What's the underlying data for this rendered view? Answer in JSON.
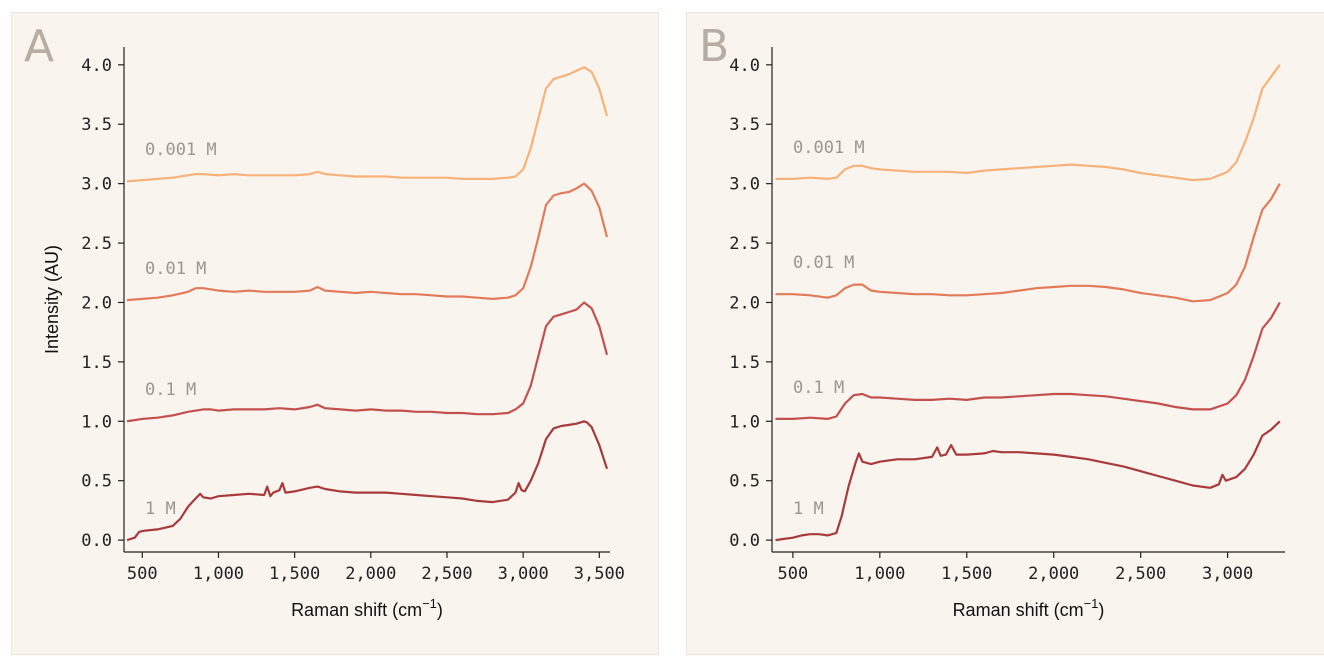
{
  "chart_data": [
    {
      "type": "line",
      "panel_label": "A",
      "xlabel": "Raman shift (cm",
      "xlabel_sup": "−1",
      "xlabel_end": ")",
      "ylabel": "Intensity (AU)",
      "xlim": [
        380,
        3570
      ],
      "ylim": [
        -0.1,
        4.15
      ],
      "xticks": [
        500,
        1000,
        1500,
        2000,
        2500,
        3000,
        3500
      ],
      "xtick_labels": [
        "500",
        "1,000",
        "1,500",
        "2,000",
        "2,500",
        "3,000",
        "3,500"
      ],
      "yticks": [
        0.0,
        0.5,
        1.0,
        1.5,
        2.0,
        2.5,
        3.0,
        3.5,
        4.0
      ],
      "ytick_labels": [
        "0.0",
        "0.5",
        "1.0",
        "1.5",
        "2.0",
        "2.5",
        "3.0",
        "3.5",
        "4.0"
      ],
      "series": [
        {
          "name": "1 M",
          "color": "#a83a3c",
          "x": [
            400,
            450,
            480,
            520,
            600,
            700,
            750,
            800,
            850,
            880,
            900,
            950,
            1000,
            1100,
            1200,
            1300,
            1320,
            1340,
            1360,
            1400,
            1420,
            1440,
            1500,
            1600,
            1650,
            1700,
            1800,
            1900,
            2000,
            2100,
            2200,
            2300,
            2400,
            2500,
            2600,
            2700,
            2800,
            2900,
            2950,
            2970,
            2990,
            3010,
            3050,
            3100,
            3150,
            3200,
            3250,
            3300,
            3350,
            3400,
            3420,
            3450,
            3500,
            3550
          ],
          "y": [
            0.0,
            0.02,
            0.07,
            0.08,
            0.09,
            0.12,
            0.18,
            0.28,
            0.35,
            0.39,
            0.36,
            0.35,
            0.37,
            0.38,
            0.39,
            0.38,
            0.45,
            0.37,
            0.4,
            0.42,
            0.48,
            0.4,
            0.41,
            0.44,
            0.45,
            0.43,
            0.41,
            0.4,
            0.4,
            0.4,
            0.39,
            0.38,
            0.37,
            0.36,
            0.35,
            0.33,
            0.32,
            0.34,
            0.4,
            0.48,
            0.42,
            0.41,
            0.5,
            0.65,
            0.85,
            0.94,
            0.96,
            0.97,
            0.98,
            1.0,
            0.99,
            0.95,
            0.8,
            0.6
          ]
        },
        {
          "name": "0.1 M",
          "color": "#c4504e",
          "x": [
            400,
            500,
            600,
            700,
            800,
            900,
            950,
            1000,
            1100,
            1200,
            1300,
            1400,
            1500,
            1600,
            1650,
            1700,
            1800,
            1900,
            2000,
            2100,
            2200,
            2300,
            2400,
            2500,
            2600,
            2700,
            2800,
            2900,
            2950,
            3000,
            3050,
            3100,
            3150,
            3200,
            3250,
            3300,
            3350,
            3400,
            3450,
            3500,
            3550
          ],
          "y": [
            1.0,
            1.02,
            1.03,
            1.05,
            1.08,
            1.1,
            1.1,
            1.09,
            1.1,
            1.1,
            1.1,
            1.11,
            1.1,
            1.12,
            1.14,
            1.11,
            1.1,
            1.09,
            1.1,
            1.09,
            1.09,
            1.08,
            1.08,
            1.07,
            1.07,
            1.06,
            1.06,
            1.07,
            1.1,
            1.15,
            1.3,
            1.55,
            1.8,
            1.88,
            1.9,
            1.92,
            1.94,
            2.0,
            1.95,
            1.8,
            1.56
          ]
        },
        {
          "name": "0.01 M",
          "color": "#e37b5a",
          "x": [
            400,
            500,
            600,
            700,
            800,
            850,
            900,
            1000,
            1100,
            1200,
            1300,
            1400,
            1500,
            1600,
            1650,
            1700,
            1800,
            1900,
            2000,
            2100,
            2200,
            2300,
            2400,
            2500,
            2600,
            2700,
            2800,
            2900,
            2950,
            3000,
            3050,
            3100,
            3150,
            3200,
            3250,
            3300,
            3350,
            3400,
            3450,
            3500,
            3550
          ],
          "y": [
            2.02,
            2.03,
            2.04,
            2.06,
            2.09,
            2.12,
            2.12,
            2.1,
            2.09,
            2.1,
            2.09,
            2.09,
            2.09,
            2.1,
            2.13,
            2.1,
            2.09,
            2.08,
            2.09,
            2.08,
            2.07,
            2.07,
            2.06,
            2.05,
            2.05,
            2.04,
            2.03,
            2.04,
            2.06,
            2.12,
            2.3,
            2.55,
            2.82,
            2.9,
            2.92,
            2.93,
            2.96,
            3.0,
            2.94,
            2.8,
            2.55
          ]
        },
        {
          "name": "0.001 M",
          "color": "#f7b27a",
          "x": [
            400,
            500,
            600,
            700,
            800,
            850,
            900,
            1000,
            1100,
            1200,
            1300,
            1400,
            1500,
            1600,
            1650,
            1700,
            1800,
            1900,
            2000,
            2100,
            2200,
            2300,
            2400,
            2500,
            2600,
            2700,
            2800,
            2900,
            2950,
            3000,
            3050,
            3100,
            3150,
            3200,
            3250,
            3300,
            3350,
            3400,
            3450,
            3500,
            3550
          ],
          "y": [
            3.02,
            3.03,
            3.04,
            3.05,
            3.07,
            3.08,
            3.08,
            3.07,
            3.08,
            3.07,
            3.07,
            3.07,
            3.07,
            3.08,
            3.1,
            3.08,
            3.07,
            3.06,
            3.06,
            3.06,
            3.05,
            3.05,
            3.05,
            3.05,
            3.04,
            3.04,
            3.04,
            3.05,
            3.06,
            3.12,
            3.3,
            3.55,
            3.8,
            3.88,
            3.9,
            3.92,
            3.95,
            3.98,
            3.94,
            3.8,
            3.57
          ]
        }
      ]
    },
    {
      "type": "line",
      "panel_label": "B",
      "xlabel": "Raman shift (cm",
      "xlabel_sup": "−1",
      "xlabel_end": ")",
      "ylabel": "",
      "xlim": [
        380,
        3330
      ],
      "ylim": [
        -0.1,
        4.15
      ],
      "xticks": [
        500,
        1000,
        1500,
        2000,
        2500,
        3000
      ],
      "xtick_labels": [
        "500",
        "1,000",
        "1,500",
        "2,000",
        "2,500",
        "3,000"
      ],
      "yticks": [
        0.0,
        0.5,
        1.0,
        1.5,
        2.0,
        2.5,
        3.0,
        3.5,
        4.0
      ],
      "ytick_labels": [
        "0.0",
        "0.5",
        "1.0",
        "1.5",
        "2.0",
        "2.5",
        "3.0",
        "3.5",
        "4.0"
      ],
      "series": [
        {
          "name": "1 M",
          "color": "#a83a3c",
          "x": [
            400,
            450,
            500,
            550,
            600,
            650,
            700,
            750,
            780,
            820,
            860,
            880,
            900,
            950,
            1000,
            1100,
            1200,
            1300,
            1330,
            1350,
            1380,
            1410,
            1440,
            1500,
            1600,
            1650,
            1700,
            1800,
            1900,
            2000,
            2100,
            2200,
            2300,
            2400,
            2500,
            2600,
            2700,
            2800,
            2900,
            2950,
            2970,
            2990,
            3050,
            3100,
            3150,
            3200,
            3250,
            3300
          ],
          "y": [
            0.0,
            0.01,
            0.02,
            0.04,
            0.05,
            0.05,
            0.04,
            0.06,
            0.2,
            0.45,
            0.65,
            0.73,
            0.66,
            0.64,
            0.66,
            0.68,
            0.68,
            0.7,
            0.78,
            0.71,
            0.72,
            0.8,
            0.72,
            0.72,
            0.73,
            0.75,
            0.74,
            0.74,
            0.73,
            0.72,
            0.7,
            0.68,
            0.65,
            0.62,
            0.58,
            0.54,
            0.5,
            0.46,
            0.44,
            0.47,
            0.55,
            0.5,
            0.53,
            0.6,
            0.72,
            0.88,
            0.93,
            1.0
          ]
        },
        {
          "name": "0.1 M",
          "color": "#c4504e",
          "x": [
            400,
            500,
            600,
            700,
            750,
            800,
            850,
            900,
            950,
            1000,
            1100,
            1200,
            1300,
            1400,
            1500,
            1600,
            1700,
            1800,
            1900,
            2000,
            2100,
            2200,
            2300,
            2400,
            2500,
            2600,
            2700,
            2800,
            2900,
            3000,
            3050,
            3100,
            3150,
            3200,
            3250,
            3300
          ],
          "y": [
            1.02,
            1.02,
            1.03,
            1.02,
            1.04,
            1.15,
            1.22,
            1.23,
            1.2,
            1.2,
            1.19,
            1.18,
            1.18,
            1.19,
            1.18,
            1.2,
            1.2,
            1.21,
            1.22,
            1.23,
            1.23,
            1.22,
            1.21,
            1.19,
            1.17,
            1.15,
            1.12,
            1.1,
            1.1,
            1.15,
            1.22,
            1.35,
            1.55,
            1.78,
            1.87,
            2.0
          ]
        },
        {
          "name": "0.01 M",
          "color": "#e37b5a",
          "x": [
            400,
            500,
            600,
            700,
            750,
            800,
            850,
            900,
            950,
            1000,
            1100,
            1200,
            1300,
            1400,
            1500,
            1600,
            1700,
            1800,
            1900,
            2000,
            2100,
            2200,
            2300,
            2400,
            2500,
            2600,
            2700,
            2800,
            2900,
            3000,
            3050,
            3100,
            3150,
            3200,
            3250,
            3300
          ],
          "y": [
            2.07,
            2.07,
            2.06,
            2.04,
            2.06,
            2.12,
            2.15,
            2.15,
            2.1,
            2.09,
            2.08,
            2.07,
            2.07,
            2.06,
            2.06,
            2.07,
            2.08,
            2.1,
            2.12,
            2.13,
            2.14,
            2.14,
            2.13,
            2.11,
            2.08,
            2.06,
            2.04,
            2.01,
            2.02,
            2.08,
            2.15,
            2.3,
            2.55,
            2.78,
            2.87,
            3.0
          ]
        },
        {
          "name": "0.001 M",
          "color": "#f7b27a",
          "x": [
            400,
            500,
            600,
            700,
            750,
            800,
            850,
            900,
            950,
            1000,
            1100,
            1200,
            1300,
            1400,
            1500,
            1600,
            1700,
            1800,
            1900,
            2000,
            2100,
            2200,
            2300,
            2400,
            2500,
            2600,
            2700,
            2800,
            2900,
            3000,
            3050,
            3100,
            3150,
            3200,
            3250,
            3300
          ],
          "y": [
            3.04,
            3.04,
            3.05,
            3.04,
            3.05,
            3.12,
            3.15,
            3.15,
            3.13,
            3.12,
            3.11,
            3.1,
            3.1,
            3.1,
            3.09,
            3.11,
            3.12,
            3.13,
            3.14,
            3.15,
            3.16,
            3.15,
            3.14,
            3.12,
            3.09,
            3.07,
            3.05,
            3.03,
            3.04,
            3.1,
            3.18,
            3.35,
            3.55,
            3.8,
            3.9,
            4.0
          ]
        }
      ]
    }
  ]
}
